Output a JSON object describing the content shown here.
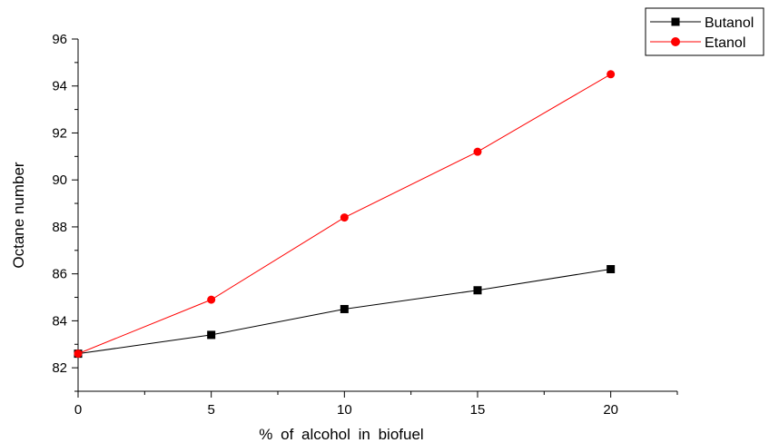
{
  "chart_data": {
    "type": "line",
    "xlabel": "% of alcohol in biofuel",
    "ylabel": "Octane number",
    "x": [
      0,
      5,
      10,
      15,
      20
    ],
    "xlim": [
      0,
      22.5
    ],
    "ylim": [
      81,
      96
    ],
    "xticks": [
      0,
      5,
      10,
      15,
      20
    ],
    "yticks": [
      82,
      84,
      86,
      88,
      90,
      92,
      94,
      96
    ],
    "grid": false,
    "legend_position": "top-right",
    "series": [
      {
        "name": "Butanol",
        "color": "#000000",
        "marker": "square",
        "values": [
          82.6,
          83.4,
          84.5,
          85.3,
          86.2
        ]
      },
      {
        "name": "Etanol",
        "color": "#ff0000",
        "marker": "circle",
        "values": [
          82.6,
          84.9,
          88.4,
          91.2,
          94.5
        ]
      }
    ]
  }
}
